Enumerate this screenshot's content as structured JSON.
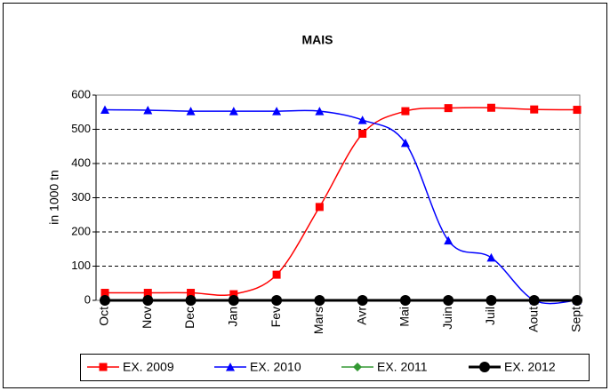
{
  "chart_data": {
    "type": "line",
    "title": "MAIS",
    "y_label": "in 1000 tn",
    "categories": [
      "Oct",
      "Nov",
      "Dec",
      "Jan",
      "Fev",
      "Mars",
      "Avr",
      "Mai",
      "Juin",
      "Juil",
      "Aout",
      "Sept"
    ],
    "series": [
      {
        "name": "EX. 2009",
        "color": "#ff0000",
        "marker": "square",
        "smooth": true,
        "values": [
          22,
          22,
          22,
          18,
          75,
          273,
          487,
          553,
          562,
          563,
          558,
          557
        ]
      },
      {
        "name": "EX. 2010",
        "color": "#0000ff",
        "marker": "triangle",
        "smooth": true,
        "values": [
          557,
          556,
          553,
          553,
          553,
          553,
          527,
          460,
          175,
          125,
          0,
          0
        ]
      },
      {
        "name": "EX. 2011",
        "color": "#339933",
        "marker": "diamond",
        "smooth": true,
        "values": [
          0,
          0,
          0,
          0,
          0,
          0,
          0,
          0,
          0,
          0,
          0,
          0
        ]
      },
      {
        "name": "EX. 2012",
        "color": "#000000",
        "marker": "circle",
        "smooth": true,
        "values": [
          0,
          0,
          0,
          0,
          0,
          0,
          0,
          0,
          0,
          0,
          0,
          0
        ]
      }
    ],
    "ylim": [
      0,
      600
    ],
    "yticks": [
      0,
      100,
      200,
      300,
      400,
      500,
      600
    ],
    "grid": true,
    "legend": "bottom"
  }
}
